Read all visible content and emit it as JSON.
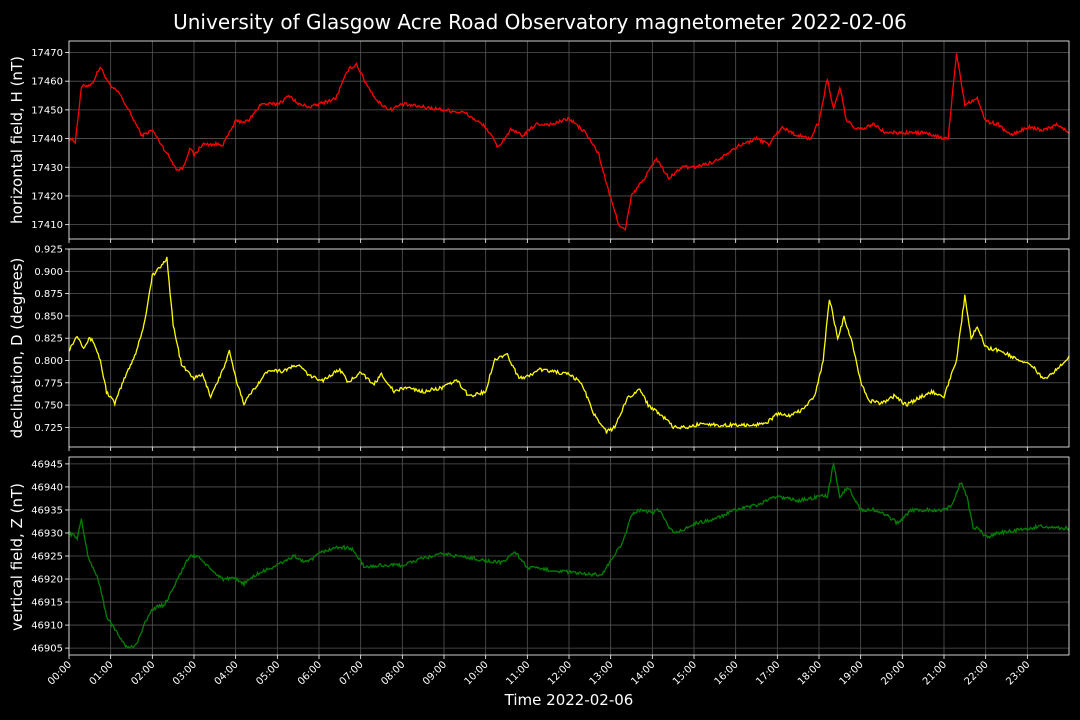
{
  "title": "University of Glasgow Acre Road Observatory magnetometer 2022-02-06",
  "xlabel": "Time 2022-02-06",
  "chart_data": [
    {
      "type": "line",
      "ylabel": "horizontal field, H (nT)",
      "color": "#ff0000",
      "ylim": [
        17405,
        17474
      ],
      "yticks": [
        17410,
        17420,
        17430,
        17440,
        17450,
        17460,
        17470
      ],
      "xlim": [
        0,
        24
      ],
      "grid": true,
      "x": [
        0.0,
        0.15,
        0.3,
        0.55,
        0.75,
        1.0,
        1.2,
        1.5,
        1.75,
        2.0,
        2.3,
        2.6,
        2.75,
        2.9,
        3.0,
        3.2,
        3.5,
        3.7,
        4.0,
        4.3,
        4.6,
        5.0,
        5.3,
        5.5,
        5.8,
        6.0,
        6.4,
        6.7,
        6.9,
        7.1,
        7.4,
        7.7,
        8.0,
        8.5,
        9.0,
        9.5,
        10.0,
        10.3,
        10.6,
        10.9,
        11.2,
        11.6,
        12.0,
        12.4,
        12.7,
        13.0,
        13.2,
        13.35,
        13.5,
        13.8,
        14.1,
        14.4,
        14.7,
        15.0,
        15.5,
        16.0,
        16.5,
        16.8,
        17.1,
        17.5,
        17.8,
        18.0,
        18.2,
        18.35,
        18.5,
        18.65,
        18.8,
        19.0,
        19.3,
        19.6,
        20.0,
        20.5,
        21.0,
        21.1,
        21.3,
        21.5,
        21.8,
        22.0,
        22.3,
        22.6,
        23.0,
        23.4,
        23.7,
        24.0
      ],
      "values": [
        17440,
        17439,
        17458,
        17459,
        17465,
        17458,
        17456,
        17448,
        17441,
        17443,
        17436,
        17429,
        17430,
        17437,
        17434,
        17438,
        17438,
        17438,
        17446,
        17446,
        17452,
        17452,
        17455,
        17452,
        17451,
        17452,
        17454,
        17464,
        17466,
        17460,
        17453,
        17450,
        17452,
        17451,
        17450,
        17449,
        17444,
        17437,
        17443,
        17441,
        17445,
        17445,
        17447,
        17442,
        17435,
        17419,
        17410,
        17408,
        17420,
        17426,
        17433,
        17426,
        17430,
        17430,
        17432,
        17437,
        17440,
        17438,
        17444,
        17441,
        17440,
        17446,
        17461,
        17450,
        17458,
        17447,
        17444,
        17443,
        17445,
        17442,
        17442,
        17442,
        17440,
        17440,
        17470,
        17452,
        17454,
        17446,
        17445,
        17441,
        17444,
        17443,
        17445,
        17442
      ]
    },
    {
      "type": "line",
      "ylabel": "declination, D (degrees)",
      "color": "#ffff00",
      "ylim": [
        0.703,
        0.925
      ],
      "yticks": [
        0.725,
        0.75,
        0.775,
        0.8,
        0.825,
        0.85,
        0.875,
        0.9,
        0.925
      ],
      "xlim": [
        0,
        24
      ],
      "grid": true,
      "x": [
        0.0,
        0.2,
        0.35,
        0.5,
        0.6,
        0.75,
        0.9,
        1.1,
        1.35,
        1.6,
        1.8,
        2.0,
        2.2,
        2.35,
        2.5,
        2.7,
        3.0,
        3.2,
        3.4,
        3.7,
        3.85,
        4.0,
        4.2,
        4.5,
        4.8,
        5.1,
        5.5,
        5.8,
        6.1,
        6.5,
        6.7,
        7.0,
        7.3,
        7.5,
        7.8,
        8.1,
        8.5,
        9.0,
        9.3,
        9.6,
        10.0,
        10.2,
        10.5,
        10.8,
        11.0,
        11.3,
        11.7,
        12.0,
        12.3,
        12.6,
        12.9,
        13.1,
        13.4,
        13.7,
        13.9,
        14.2,
        14.5,
        14.9,
        15.2,
        15.6,
        16.0,
        16.4,
        16.8,
        17.0,
        17.3,
        17.6,
        17.9,
        18.1,
        18.25,
        18.45,
        18.6,
        18.8,
        19.0,
        19.2,
        19.5,
        19.8,
        20.1,
        20.4,
        20.7,
        21.0,
        21.3,
        21.5,
        21.65,
        21.8,
        22.0,
        22.4,
        22.8,
        23.1,
        23.4,
        23.7,
        24.0
      ],
      "values": [
        0.812,
        0.828,
        0.815,
        0.825,
        0.82,
        0.8,
        0.765,
        0.752,
        0.782,
        0.808,
        0.84,
        0.895,
        0.905,
        0.915,
        0.84,
        0.795,
        0.78,
        0.784,
        0.76,
        0.79,
        0.81,
        0.78,
        0.752,
        0.772,
        0.79,
        0.788,
        0.795,
        0.782,
        0.778,
        0.79,
        0.775,
        0.788,
        0.772,
        0.785,
        0.765,
        0.77,
        0.765,
        0.77,
        0.778,
        0.76,
        0.765,
        0.8,
        0.808,
        0.78,
        0.782,
        0.79,
        0.787,
        0.784,
        0.775,
        0.74,
        0.72,
        0.725,
        0.758,
        0.768,
        0.75,
        0.74,
        0.725,
        0.725,
        0.73,
        0.727,
        0.728,
        0.727,
        0.732,
        0.74,
        0.738,
        0.745,
        0.76,
        0.8,
        0.87,
        0.825,
        0.848,
        0.82,
        0.775,
        0.755,
        0.752,
        0.76,
        0.75,
        0.758,
        0.765,
        0.76,
        0.8,
        0.872,
        0.825,
        0.838,
        0.815,
        0.81,
        0.8,
        0.795,
        0.778,
        0.79,
        0.805
      ]
    },
    {
      "type": "line",
      "ylabel": "vertical field, Z (nT)",
      "color": "#008000",
      "ylim": [
        46903.5,
        46946.5
      ],
      "yticks": [
        46905,
        46910,
        46915,
        46920,
        46925,
        46930,
        46935,
        46940,
        46945
      ],
      "xlim": [
        0,
        24
      ],
      "grid": true,
      "xticks": [
        "00:00",
        "01:00",
        "02:00",
        "03:00",
        "04:00",
        "05:00",
        "06:00",
        "07:00",
        "08:00",
        "09:00",
        "10:00",
        "11:00",
        "12:00",
        "13:00",
        "14:00",
        "15:00",
        "16:00",
        "17:00",
        "18:00",
        "19:00",
        "20:00",
        "21:00",
        "22:00",
        "23:00"
      ],
      "x": [
        0.0,
        0.2,
        0.3,
        0.45,
        0.7,
        0.9,
        1.1,
        1.4,
        1.6,
        1.8,
        2.0,
        2.3,
        2.6,
        2.9,
        3.1,
        3.4,
        3.7,
        4.0,
        4.2,
        4.5,
        5.0,
        5.4,
        5.7,
        6.1,
        6.5,
        6.8,
        7.1,
        7.5,
        8.0,
        8.5,
        9.0,
        9.3,
        9.7,
        10.0,
        10.4,
        10.7,
        11.0,
        11.5,
        12.0,
        12.4,
        12.8,
        13.0,
        13.3,
        13.5,
        13.7,
        14.0,
        14.2,
        14.4,
        14.6,
        15.0,
        15.5,
        16.0,
        16.5,
        17.0,
        17.5,
        17.8,
        18.0,
        18.2,
        18.35,
        18.5,
        18.7,
        19.0,
        19.3,
        19.6,
        19.9,
        20.2,
        20.6,
        21.0,
        21.2,
        21.4,
        21.55,
        21.7,
        21.85,
        22.0,
        22.3,
        22.7,
        23.0,
        23.4,
        23.7,
        24.0
      ],
      "values": [
        46930,
        46929,
        46933,
        46925,
        46920,
        46912,
        46909,
        46905,
        46905.5,
        46910,
        46913.5,
        46914.5,
        46920,
        46925,
        46925,
        46922,
        46920,
        46920,
        46919,
        46921,
        46923,
        46925,
        46923.5,
        46926,
        46927,
        46926.5,
        46922.5,
        46923,
        46923,
        46924.5,
        46925.5,
        46925,
        46924.5,
        46924,
        46923.5,
        46926,
        46922.5,
        46922,
        46921.5,
        46921,
        46921,
        46924,
        46928,
        46934,
        46935,
        46934.5,
        46935,
        46931,
        46930,
        46932,
        46933,
        46935,
        46936,
        46938,
        46937,
        46937.5,
        46938,
        46938,
        46945,
        46938,
        46940,
        46935,
        46935,
        46934,
        46932,
        46935,
        46935,
        46935,
        46936,
        46941,
        46938,
        46931,
        46931,
        46929,
        46930,
        46930.5,
        46931,
        46931.5,
        46931,
        46931
      ]
    }
  ]
}
